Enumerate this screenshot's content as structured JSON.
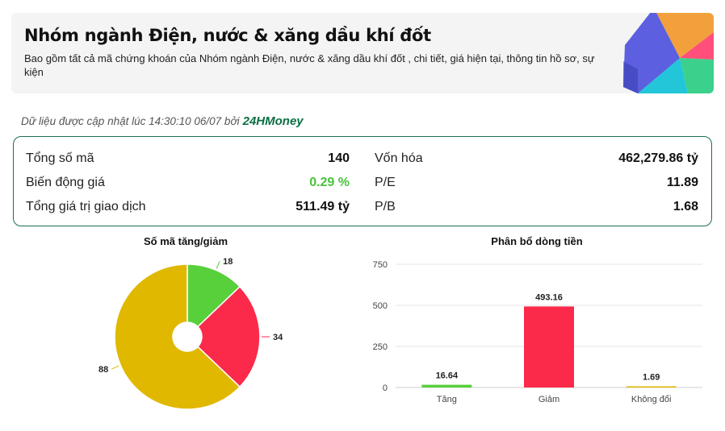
{
  "header": {
    "title": "Nhóm ngành Điện, nước & xăng dầu khí đốt",
    "description": "Bao gồm tất cả mã chứng khoán của Nhóm ngành Điện, nước & xăng dầu khí đốt , chi tiết, giá hiện tại, thông tin hồ sơ, sự kiện"
  },
  "updated": {
    "text": "Dữ liệu được cập nhật lúc 14:30:10 06/07 bởi",
    "brand": "24HMoney"
  },
  "stats": {
    "total_codes_label": "Tổng số mã",
    "total_codes_value": "140",
    "price_change_label": "Biến động giá",
    "price_change_value": "0.29 %",
    "trade_value_label": "Tổng giá trị giao dịch",
    "trade_value_value": "511.49 tỷ",
    "market_cap_label": "Vốn hóa",
    "market_cap_value": "462,279.86 tỷ",
    "pe_label": "P/E",
    "pe_value": "11.89",
    "pb_label": "P/B",
    "pb_value": "1.68"
  },
  "colors": {
    "up": "#58d03b",
    "down": "#fb2a4a",
    "unchanged": "#e0b800",
    "brand_green": "#0a6e45",
    "positive_text": "#49c23b"
  },
  "chart_data": [
    {
      "type": "pie",
      "title": "Số mã tăng/giảm",
      "donut": true,
      "slices": [
        {
          "value": 18,
          "label": "18",
          "color": "#58d03b"
        },
        {
          "value": 34,
          "label": "34",
          "color": "#fb2a4a"
        },
        {
          "value": 88,
          "label": "88",
          "color": "#e0b800"
        }
      ]
    },
    {
      "type": "bar",
      "title": "Phân bổ dòng tiền",
      "categories": [
        "Tăng",
        "Giảm",
        "Không đổi"
      ],
      "values": [
        16.64,
        493.16,
        1.69
      ],
      "value_labels": [
        "16.64",
        "493.16",
        "1.69"
      ],
      "colors": [
        "#58d03b",
        "#fb2a4a",
        "#e0b800"
      ],
      "ylim": [
        0,
        750
      ],
      "yticks": [
        "0",
        "250",
        "500",
        "750"
      ],
      "grid": true
    }
  ]
}
